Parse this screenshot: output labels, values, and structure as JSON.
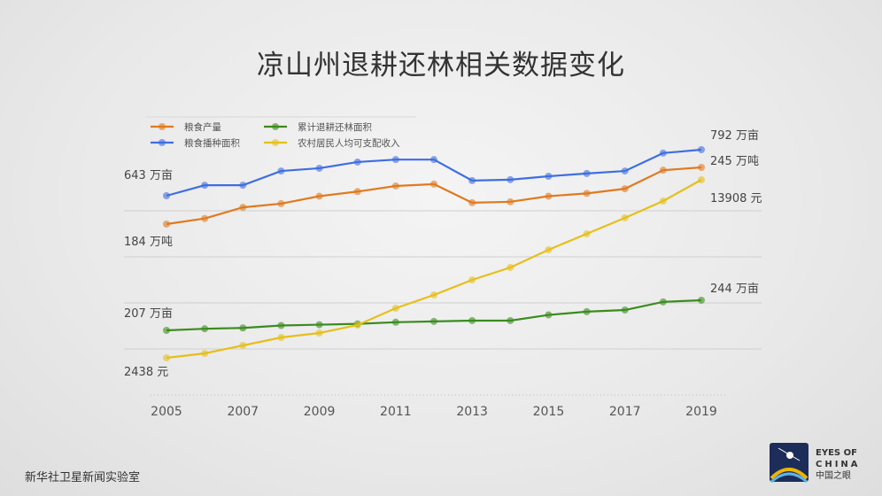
{
  "title": "凉山州退耕还林相关数据变化",
  "footer": "新华社卫星新闻实验室",
  "logo": {
    "line1": "EYES OF",
    "line2": "CHINA",
    "line3": "中国之眼"
  },
  "chart_data": {
    "type": "line",
    "title": "凉山州退耕还林相关数据变化",
    "x": [
      2005,
      2006,
      2007,
      2008,
      2009,
      2010,
      2011,
      2012,
      2013,
      2014,
      2015,
      2016,
      2017,
      2018,
      2019
    ],
    "xticks": [
      "2005",
      "2007",
      "2009",
      "2011",
      "2013",
      "2015",
      "2017",
      "2019"
    ],
    "grid": true,
    "legend": "top-left",
    "series": [
      {
        "name": "粮食产量",
        "color": "#e07a1f",
        "unit": "万吨",
        "start_label": "184 万吨",
        "end_label": "245 万吨",
        "values": [
          184,
          190,
          202,
          206,
          214,
          219,
          225,
          227,
          207,
          208,
          214,
          217,
          222,
          242,
          245
        ]
      },
      {
        "name": "粮食播种面积",
        "color": "#3f6ee0",
        "unit": "万亩",
        "start_label": "643 万亩",
        "end_label": "792 万亩",
        "values": [
          643,
          677,
          677,
          723,
          732,
          752,
          760,
          760,
          692,
          695,
          706,
          715,
          723,
          781,
          792
        ]
      },
      {
        "name": "累计退耕还林面积",
        "color": "#3a8c1e",
        "unit": "万亩",
        "start_label": "207 万亩",
        "end_label": "244 万亩",
        "values": [
          207,
          209,
          210,
          213,
          214,
          215,
          217,
          218,
          219,
          219,
          226,
          230,
          232,
          242,
          244
        ]
      },
      {
        "name": "农村居民人均可支配收入",
        "color": "#e6bf1a",
        "unit": "元",
        "start_label": "2438 元",
        "end_label": "13908 元",
        "values": [
          2438,
          2723,
          3237,
          3751,
          4036,
          4550,
          5634,
          6490,
          7460,
          8259,
          9400,
          10427,
          11454,
          12538,
          13908
        ]
      }
    ]
  }
}
